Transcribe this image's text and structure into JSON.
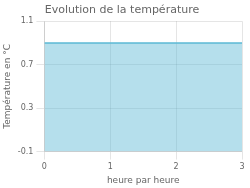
{
  "chart_data": {
    "type": "area",
    "title": "Evolution de la température",
    "xlabel": "heure par heure",
    "ylabel": "Température en °C",
    "x": [
      0,
      3
    ],
    "values": [
      0.9,
      0.9
    ],
    "color": "#5bb8d4",
    "xlim": [
      0,
      3
    ],
    "ylim": [
      -0.1,
      1.1
    ],
    "xticks": [
      0,
      1,
      2,
      3
    ],
    "yticks": [
      -0.1,
      0.3,
      0.7,
      1.1
    ],
    "grid": true
  }
}
